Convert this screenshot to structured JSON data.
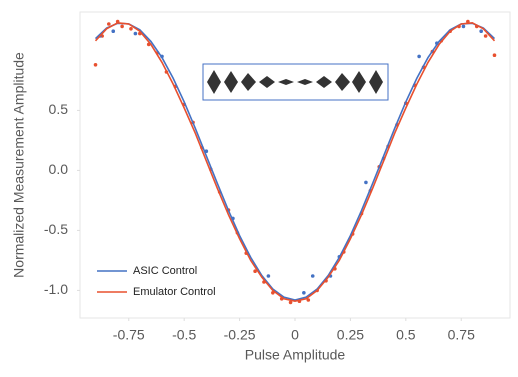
{
  "chart_data": {
    "type": "line",
    "x_label": "Pulse Amplitude",
    "y_label": "Normalized Measurement Amplitude",
    "xlim": [
      -0.97,
      0.97
    ],
    "ylim": [
      -1.23,
      1.32
    ],
    "xticks": [
      -0.75,
      -0.5,
      -0.25,
      0,
      0.25,
      0.5,
      0.75
    ],
    "yticks": [
      0.5,
      {
        "value": 0,
        "label": "0.0"
      },
      -0.5,
      {
        "value": -1,
        "label": "-1.0"
      }
    ],
    "legend": "lower left",
    "series": [
      {
        "mode": "markers",
        "color": "#e8502f",
        "x": [
          -0.9,
          -0.87,
          -0.84,
          -0.8,
          -0.78,
          -0.74,
          -0.7,
          -0.66,
          -0.62,
          -0.58,
          -0.54,
          -0.5,
          -0.46,
          -0.42,
          -0.38,
          -0.34,
          -0.3,
          -0.26,
          -0.22,
          -0.18,
          -0.14,
          -0.1,
          -0.06,
          -0.02,
          0.02,
          0.06,
          0.1,
          0.14,
          0.18,
          0.22,
          0.26,
          0.3,
          0.34,
          0.38,
          0.42,
          0.46,
          0.5,
          0.54,
          0.58,
          0.62,
          0.66,
          0.7,
          0.74,
          0.78,
          0.82,
          0.86,
          0.9
        ],
        "values": [
          0.88,
          1.12,
          1.22,
          1.24,
          1.2,
          1.18,
          1.14,
          1.05,
          0.98,
          0.82,
          0.7,
          0.55,
          0.4,
          0.19,
          0.01,
          -0.18,
          -0.33,
          -0.52,
          -0.69,
          -0.84,
          -0.93,
          -1.02,
          -1.07,
          -1.1,
          -1.09,
          -1.08,
          -1.0,
          -0.92,
          -0.82,
          -0.68,
          -0.53,
          -0.36,
          -0.17,
          0.03,
          0.2,
          0.38,
          0.56,
          0.71,
          0.86,
          0.99,
          1.08,
          1.16,
          1.2,
          1.24,
          1.2,
          1.12,
          0.96
        ]
      },
      {
        "mode": "markers",
        "color": "#4472c4",
        "x": [
          -0.88,
          -0.82,
          -0.72,
          -0.6,
          -0.4,
          -0.28,
          -0.12,
          0.04,
          0.08,
          0.16,
          0.2,
          0.32,
          0.4,
          0.56,
          0.64,
          0.76,
          0.84
        ],
        "values": [
          1.12,
          1.16,
          1.14,
          0.95,
          0.16,
          -0.4,
          -0.88,
          -1.02,
          -0.88,
          -0.88,
          -0.72,
          -0.1,
          0.1,
          0.95,
          1.06,
          1.2,
          1.16
        ]
      },
      {
        "mode": "line",
        "name": "ASIC Control",
        "color": "#4472c4",
        "x": [
          -0.9,
          -0.85,
          -0.8,
          -0.75,
          -0.7,
          -0.65,
          -0.6,
          -0.55,
          -0.5,
          -0.45,
          -0.4,
          -0.35,
          -0.3,
          -0.25,
          -0.2,
          -0.15,
          -0.1,
          -0.05,
          0,
          0.05,
          0.1,
          0.15,
          0.2,
          0.25,
          0.3,
          0.35,
          0.4,
          0.45,
          0.5,
          0.55,
          0.6,
          0.65,
          0.7,
          0.75,
          0.8,
          0.85,
          0.9
        ],
        "values": [
          1.098,
          1.186,
          1.226,
          1.221,
          1.172,
          1.075,
          0.94,
          0.769,
          0.571,
          0.351,
          0.122,
          -0.11,
          -0.335,
          -0.543,
          -0.725,
          -0.876,
          -0.988,
          -1.057,
          -1.08,
          -1.057,
          -0.988,
          -0.876,
          -0.725,
          -0.543,
          -0.335,
          -0.11,
          0.122,
          0.351,
          0.571,
          0.769,
          0.94,
          1.075,
          1.172,
          1.221,
          1.226,
          1.186,
          1.098
        ]
      },
      {
        "mode": "line",
        "name": "Emulator Control",
        "color": "#e8502f",
        "x": [
          -0.9,
          -0.85,
          -0.8,
          -0.75,
          -0.7,
          -0.65,
          -0.6,
          -0.55,
          -0.5,
          -0.45,
          -0.4,
          -0.35,
          -0.3,
          -0.25,
          -0.2,
          -0.15,
          -0.1,
          -0.05,
          0,
          0.05,
          0.1,
          0.15,
          0.2,
          0.25,
          0.3,
          0.35,
          0.4,
          0.45,
          0.5,
          0.55,
          0.6,
          0.65,
          0.7,
          0.75,
          0.8,
          0.85,
          0.9
        ],
        "values": [
          1.08,
          1.18,
          1.23,
          1.22,
          1.16,
          1.05,
          0.9,
          0.72,
          0.52,
          0.31,
          0.08,
          -0.15,
          -0.37,
          -0.57,
          -0.75,
          -0.89,
          -1.0,
          -1.07,
          -1.09,
          -1.07,
          -1.0,
          -0.89,
          -0.75,
          -0.57,
          -0.37,
          -0.15,
          0.08,
          0.31,
          0.52,
          0.72,
          0.9,
          1.05,
          1.16,
          1.22,
          1.23,
          1.18,
          1.08
        ]
      }
    ]
  }
}
